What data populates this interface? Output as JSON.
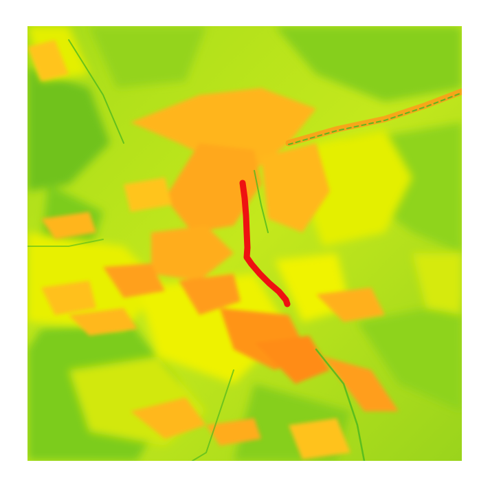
{
  "map": {
    "kind": "slope raster with route overlay",
    "colors": {
      "low": "#7ccc1e",
      "mid_low": "#a6dc1a",
      "mid": "#e8f000",
      "mid_high": "#ffc000",
      "high": "#ff9a1a",
      "route": "#ee1111"
    }
  }
}
